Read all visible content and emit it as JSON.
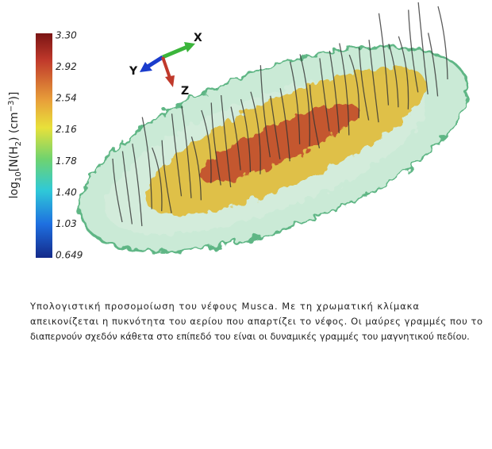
{
  "figure": {
    "axes": {
      "x": "X",
      "y": "Y",
      "z": "Z"
    },
    "colorbar": {
      "ticks": [
        "3.30",
        "2.92",
        "2.54",
        "2.16",
        "1.78",
        "1.40",
        "1.03",
        "0.649"
      ],
      "label": {
        "base": "log",
        "base_sub": "10",
        "open": "[N(H",
        "species_sub": "2",
        "unit": ") (cm",
        "unit_sup": "−3",
        "close": ")]"
      }
    }
  },
  "caption": {
    "lines": [
      "Υπολογιστική προσομοίωση του νέφους Musca. Με τη χρωματική κλίμακα",
      "απεικονίζεται η πυκνότητα του αερίου που απαρτίζει το νέφος. Οι μαύρες γραμμές που το",
      "διαπερνούν σχεδόν κάθετα στο επίπεδό του είναι οι δυναμικές γραμμές του μαγνητικού πεδίου."
    ]
  }
}
